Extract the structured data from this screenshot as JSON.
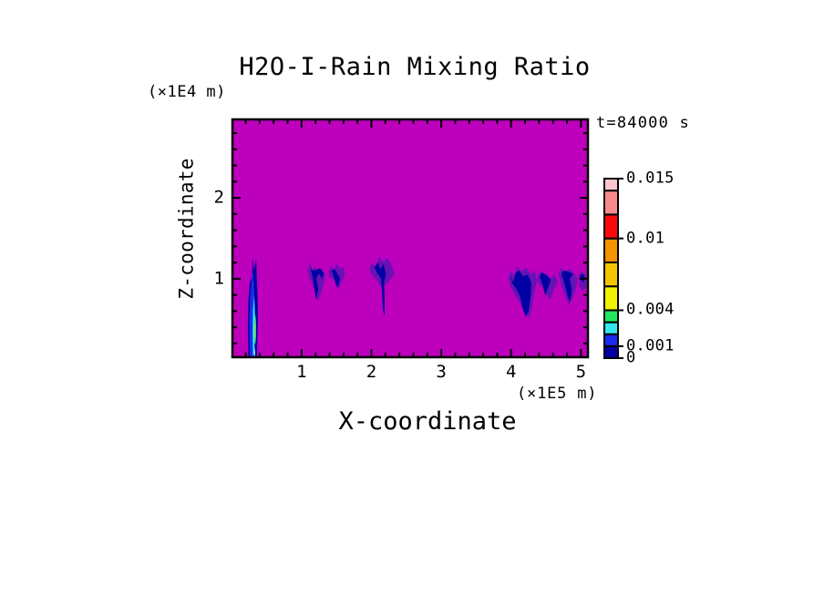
{
  "title": "H2O-I-Rain Mixing Ratio",
  "labels": {
    "time": "t=84000 s",
    "y_units": "(×1E4 m)",
    "x_units": "(×1E5 m)",
    "x_axis": "X-coordinate",
    "y_axis": "Z-coordinate"
  },
  "chart_data": {
    "type": "heatmap",
    "title": "H2O-I-Rain Mixing Ratio",
    "xlabel": "X-coordinate",
    "ylabel": "Z-coordinate",
    "x_units_note": "(×1E5 m)",
    "y_units_note": "(×1E4 m)",
    "time_annotation": "t=84000 s",
    "x_range": [
      0.01,
      5.1
    ],
    "z_range": [
      0.03,
      2.97
    ],
    "x_ticks": [
      {
        "value": 1,
        "label": "1"
      },
      {
        "value": 2,
        "label": "2"
      },
      {
        "value": 3,
        "label": "3"
      },
      {
        "value": 4,
        "label": "4"
      },
      {
        "value": 5,
        "label": "5"
      }
    ],
    "z_ticks": [
      {
        "value": 1,
        "label": "1"
      },
      {
        "value": 2,
        "label": "2"
      }
    ],
    "minor_tick_step": 0.2,
    "grid": "off",
    "legend_position": "right-colorbar",
    "palette": {
      "background": "#BC00BC",
      "fringe": "#6712B4",
      "navy": "#0000A5",
      "blue": "#1A2BEE",
      "cyan": "#33E8F0",
      "green": "#22E95E",
      "yellow": "#F2F200",
      "amber": "#F5C400",
      "orange": "#F59200",
      "red": "#FA0A0A",
      "salmon": "#FA8A8A",
      "lightpink": "#FFC4CC",
      "ice": "#BFF4FF",
      "frame": "#000000"
    },
    "colorbar": {
      "min": 0,
      "max": 0.015,
      "levels": [
        0,
        0.001,
        0.002,
        0.003,
        0.004,
        0.006,
        0.008,
        0.01,
        0.012,
        0.014,
        0.015
      ],
      "colors": [
        "navy",
        "blue",
        "cyan",
        "green",
        "yellow",
        "amber",
        "orange",
        "red",
        "salmon",
        "lightpink"
      ],
      "labeled_ticks": [
        {
          "value": 0.015,
          "label": "0.015"
        },
        {
          "value": 0.01,
          "label": "0.01"
        },
        {
          "value": 0.004,
          "label": "0.004"
        },
        {
          "value": 0.001,
          "label": "0.001"
        },
        {
          "value": 0,
          "label": "0"
        }
      ]
    },
    "features": [
      {
        "name": "rain-shaft-left",
        "layers": [
          {
            "color": "navy",
            "pts": [
              [
                0.24,
                0.03
              ],
              [
                0.232,
                0.4
              ],
              [
                0.24,
                0.75
              ],
              [
                0.26,
                0.95
              ],
              [
                0.29,
                1.03
              ],
              [
                0.305,
                1.28
              ],
              [
                0.318,
                1.1
              ],
              [
                0.335,
                1.17
              ],
              [
                0.35,
                1.25
              ],
              [
                0.36,
                1.0
              ],
              [
                0.37,
                0.75
              ],
              [
                0.375,
                0.5
              ],
              [
                0.365,
                0.2
              ],
              [
                0.358,
                0.03
              ]
            ]
          },
          {
            "color": "blue",
            "pts": [
              [
                0.26,
                0.03
              ],
              [
                0.252,
                0.4
              ],
              [
                0.26,
                0.75
              ],
              [
                0.285,
                0.98
              ],
              [
                0.3,
                1.1
              ],
              [
                0.315,
                0.95
              ],
              [
                0.33,
                0.7
              ],
              [
                0.335,
                0.45
              ],
              [
                0.325,
                0.15
              ],
              [
                0.32,
                0.03
              ]
            ]
          },
          {
            "color": "cyan",
            "pts": [
              [
                0.305,
                0.05
              ],
              [
                0.3,
                0.35
              ],
              [
                0.305,
                0.62
              ],
              [
                0.32,
                0.8
              ],
              [
                0.33,
                0.6
              ],
              [
                0.335,
                0.35
              ],
              [
                0.325,
                0.1
              ],
              [
                0.318,
                0.05
              ]
            ]
          },
          {
            "color": "green",
            "pts": [
              [
                0.33,
                0.2
              ],
              [
                0.327,
                0.38
              ],
              [
                0.333,
                0.58
              ],
              [
                0.345,
                0.5
              ],
              [
                0.347,
                0.3
              ],
              [
                0.34,
                0.2
              ]
            ]
          },
          {
            "color": "yellow",
            "pts": [
              [
                0.335,
                0.24
              ],
              [
                0.333,
                0.36
              ],
              [
                0.338,
                0.52
              ],
              [
                0.344,
                0.42
              ],
              [
                0.342,
                0.26
              ]
            ]
          },
          {
            "color": "ice",
            "pts": [
              [
                0.325,
                0.03
              ],
              [
                0.322,
                0.1
              ],
              [
                0.33,
                0.16
              ],
              [
                0.335,
                0.08
              ],
              [
                0.33,
                0.03
              ]
            ]
          }
        ]
      },
      {
        "name": "rain-wisp-1",
        "layers": [
          {
            "color": "fringe",
            "pts": [
              [
                1.09,
                1.1
              ],
              [
                1.12,
                1.19
              ],
              [
                1.16,
                1.1
              ],
              [
                1.19,
                1.16
              ],
              [
                1.23,
                1.08
              ],
              [
                1.28,
                1.13
              ],
              [
                1.34,
                1.05
              ],
              [
                1.31,
                0.92
              ],
              [
                1.27,
                0.8
              ],
              [
                1.23,
                0.72
              ],
              [
                1.19,
                0.84
              ],
              [
                1.14,
                0.97
              ],
              [
                1.1,
                1.02
              ]
            ]
          },
          {
            "color": "navy",
            "pts": [
              [
                1.13,
                1.12
              ],
              [
                1.16,
                1.02
              ],
              [
                1.18,
                0.9
              ],
              [
                1.21,
                0.74
              ],
              [
                1.24,
                0.87
              ],
              [
                1.21,
                1.0
              ],
              [
                1.25,
                1.07
              ],
              [
                1.29,
                1.0
              ],
              [
                1.32,
                1.07
              ],
              [
                1.26,
                1.13
              ],
              [
                1.18,
                1.1
              ]
            ]
          }
        ]
      },
      {
        "name": "rain-wisp-2",
        "layers": [
          {
            "color": "fringe",
            "pts": [
              [
                1.39,
                1.08
              ],
              [
                1.42,
                1.17
              ],
              [
                1.46,
                1.1
              ],
              [
                1.5,
                1.18
              ],
              [
                1.55,
                1.12
              ],
              [
                1.6,
                1.15
              ],
              [
                1.62,
                1.05
              ],
              [
                1.58,
                0.97
              ],
              [
                1.53,
                0.88
              ],
              [
                1.49,
                0.96
              ],
              [
                1.44,
                1.0
              ],
              [
                1.4,
                1.02
              ]
            ]
          },
          {
            "color": "navy",
            "pts": [
              [
                1.43,
                1.1
              ],
              [
                1.46,
                1.03
              ],
              [
                1.49,
                0.93
              ],
              [
                1.52,
                0.89
              ],
              [
                1.55,
                1.0
              ],
              [
                1.51,
                1.07
              ],
              [
                1.47,
                1.12
              ]
            ]
          }
        ]
      },
      {
        "name": "rain-plume-center",
        "layers": [
          {
            "color": "fringe",
            "pts": [
              [
                1.97,
                1.12
              ],
              [
                2.01,
                1.2
              ],
              [
                2.06,
                1.14
              ],
              [
                2.11,
                1.27
              ],
              [
                2.17,
                1.21
              ],
              [
                2.23,
                1.26
              ],
              [
                2.29,
                1.16
              ],
              [
                2.33,
                1.07
              ],
              [
                2.27,
                0.99
              ],
              [
                2.21,
                0.93
              ],
              [
                2.14,
                0.9
              ],
              [
                2.08,
                0.98
              ],
              [
                2.01,
                1.04
              ]
            ]
          },
          {
            "color": "navy",
            "pts": [
              [
                2.04,
                1.14
              ],
              [
                2.09,
                1.2
              ],
              [
                2.13,
                1.12
              ],
              [
                2.17,
                1.18
              ],
              [
                2.21,
                1.06
              ],
              [
                2.18,
                0.96
              ],
              [
                2.19,
                0.78
              ],
              [
                2.19,
                0.54
              ],
              [
                2.165,
                0.62
              ],
              [
                2.15,
                0.85
              ],
              [
                2.14,
                1.0
              ],
              [
                2.09,
                1.06
              ]
            ]
          }
        ]
      },
      {
        "name": "rain-cluster-right-main",
        "layers": [
          {
            "color": "fringe",
            "pts": [
              [
                3.96,
                1.0
              ],
              [
                3.99,
                1.1
              ],
              [
                4.04,
                1.04
              ],
              [
                4.09,
                1.15
              ],
              [
                4.15,
                1.09
              ],
              [
                4.21,
                1.14
              ],
              [
                4.28,
                1.06
              ],
              [
                4.34,
                1.1
              ],
              [
                4.37,
                0.97
              ],
              [
                4.33,
                0.82
              ],
              [
                4.3,
                0.65
              ],
              [
                4.26,
                0.51
              ],
              [
                4.2,
                0.56
              ],
              [
                4.14,
                0.68
              ],
              [
                4.07,
                0.78
              ],
              [
                4.0,
                0.88
              ]
            ]
          },
          {
            "color": "navy",
            "pts": [
              [
                3.99,
                1.04
              ],
              [
                4.03,
                0.96
              ],
              [
                4.07,
                1.08
              ],
              [
                4.12,
                1.1
              ],
              [
                4.17,
                1.03
              ],
              [
                4.24,
                1.05
              ],
              [
                4.29,
                0.95
              ],
              [
                4.28,
                0.78
              ],
              [
                4.25,
                0.6
              ],
              [
                4.21,
                0.53
              ],
              [
                4.17,
                0.62
              ],
              [
                4.13,
                0.78
              ],
              [
                4.07,
                0.88
              ],
              [
                4.02,
                0.94
              ]
            ]
          }
        ]
      },
      {
        "name": "rain-cluster-right-mid",
        "layers": [
          {
            "color": "fringe",
            "pts": [
              [
                4.37,
                1.0
              ],
              [
                4.41,
                1.09
              ],
              [
                4.46,
                1.01
              ],
              [
                4.51,
                1.07
              ],
              [
                4.57,
                1.0
              ],
              [
                4.62,
                1.05
              ],
              [
                4.67,
                0.96
              ],
              [
                4.61,
                0.86
              ],
              [
                4.56,
                0.74
              ],
              [
                4.51,
                0.81
              ],
              [
                4.45,
                0.9
              ],
              [
                4.4,
                0.93
              ]
            ]
          },
          {
            "color": "navy",
            "pts": [
              [
                4.41,
                1.03
              ],
              [
                4.45,
                0.93
              ],
              [
                4.49,
                0.79
              ],
              [
                4.53,
                0.89
              ],
              [
                4.57,
                0.99
              ],
              [
                4.53,
                1.02
              ],
              [
                4.48,
                1.06
              ],
              [
                4.44,
                1.08
              ]
            ]
          }
        ]
      },
      {
        "name": "rain-cluster-right-outer",
        "layers": [
          {
            "color": "fringe",
            "pts": [
              [
                4.68,
                1.05
              ],
              [
                4.72,
                1.14
              ],
              [
                4.78,
                1.08
              ],
              [
                4.84,
                1.13
              ],
              [
                4.9,
                1.06
              ],
              [
                4.95,
                1.01
              ],
              [
                4.93,
                0.89
              ],
              [
                4.88,
                0.76
              ],
              [
                4.83,
                0.68
              ],
              [
                4.77,
                0.79
              ],
              [
                4.72,
                0.92
              ]
            ]
          },
          {
            "color": "navy",
            "pts": [
              [
                4.72,
                1.06
              ],
              [
                4.76,
                0.96
              ],
              [
                4.8,
                0.82
              ],
              [
                4.84,
                0.71
              ],
              [
                4.87,
                0.86
              ],
              [
                4.84,
                1.0
              ],
              [
                4.89,
                1.06
              ],
              [
                4.81,
                1.09
              ],
              [
                4.76,
                1.1
              ]
            ]
          }
        ]
      },
      {
        "name": "rain-patch-right-edge",
        "layers": [
          {
            "color": "fringe",
            "pts": [
              [
                4.96,
                1.03
              ],
              [
                5.0,
                1.1
              ],
              [
                5.05,
                1.06
              ],
              [
                5.08,
                1.0
              ],
              [
                5.08,
                0.9
              ],
              [
                5.03,
                0.85
              ],
              [
                4.98,
                0.9
              ]
            ]
          },
          {
            "color": "navy",
            "pts": [
              [
                4.99,
                1.02
              ],
              [
                5.03,
                0.95
              ],
              [
                5.06,
                1.0
              ],
              [
                5.04,
                1.05
              ],
              [
                5.0,
                1.06
              ]
            ]
          }
        ]
      }
    ]
  }
}
